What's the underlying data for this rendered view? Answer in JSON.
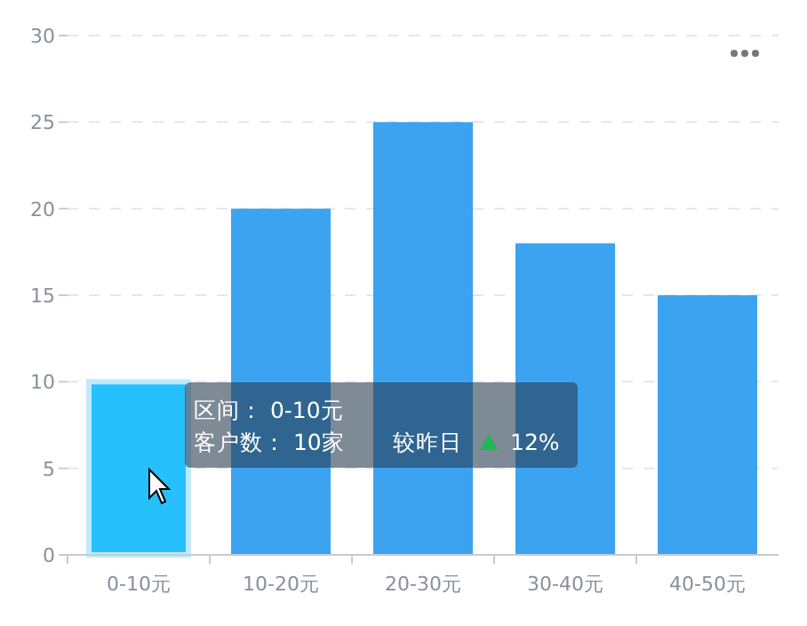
{
  "chart_data": {
    "type": "bar",
    "categories": [
      "0-10元",
      "10-20元",
      "20-30元",
      "30-40元",
      "40-50元"
    ],
    "values": [
      10,
      20,
      25,
      18,
      15
    ],
    "colors": [
      "#26c0fc",
      "#3ba3f0",
      "#3ba3f0",
      "#3ba3f0",
      "#3ba3f0"
    ],
    "ylim": [
      0,
      30
    ],
    "yticks": [
      0,
      5,
      10,
      15,
      20,
      25,
      30
    ],
    "grid": "y",
    "annotations": [
      "区间： 0-10元",
      "客户数： 10家",
      "较昨日",
      "12%"
    ]
  }
}
